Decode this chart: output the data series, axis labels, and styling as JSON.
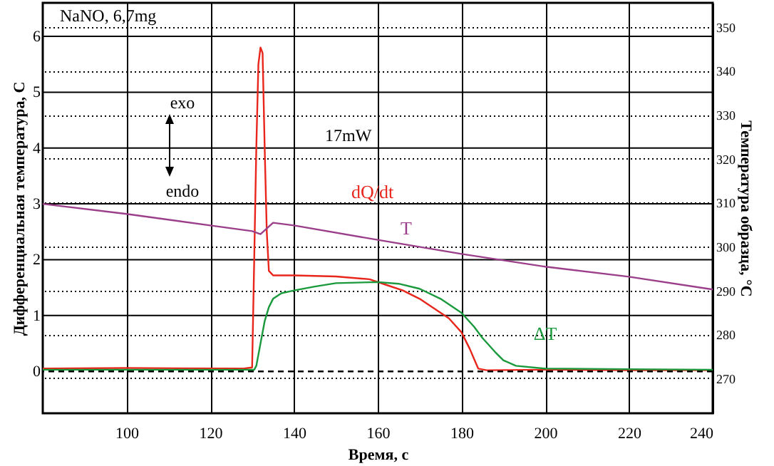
{
  "chart_data": {
    "type": "line",
    "xlabel": "Время, с",
    "ylabel": "Дифференциальная температура, С",
    "y2label": "Температура образца, °С",
    "xlim": [
      80,
      240
    ],
    "xticks": [
      100,
      120,
      140,
      160,
      180,
      200,
      220,
      240
    ],
    "ylim": [
      -0.75,
      6.6
    ],
    "yticks": [
      0,
      1,
      2,
      3,
      4,
      5,
      6
    ],
    "y2lim": [
      262,
      355.5
    ],
    "y2ticks": [
      270,
      280,
      290,
      300,
      310,
      320,
      330,
      340,
      350
    ],
    "grid": true,
    "line_style": "solid",
    "marker": "none",
    "annotations": [
      "NaNO, 6,7mg",
      "exo",
      "endo",
      "17mW"
    ],
    "ref_lines": [
      {
        "axis": "y",
        "value": 0,
        "line_style": "dashed",
        "color": "#000000"
      }
    ],
    "series": [
      {
        "name": "dQ/dt",
        "color": "#e8261c",
        "x": [
          80,
          100,
          128,
          130,
          130.5,
          131,
          131.5,
          132,
          132.5,
          133,
          133.5,
          134,
          135,
          140,
          150,
          158,
          162,
          166,
          170,
          174,
          177,
          180,
          182,
          184,
          186,
          200,
          220,
          240
        ],
        "values": [
          0.05,
          0.06,
          0.05,
          0.07,
          2,
          4,
          5.5,
          5.8,
          5.7,
          4,
          2.5,
          1.8,
          1.72,
          1.72,
          1.7,
          1.65,
          1.55,
          1.45,
          1.3,
          1.1,
          0.95,
          0.7,
          0.4,
          0.05,
          0.02,
          0.03,
          0.02,
          0.02
        ]
      },
      {
        "name": "ΔT",
        "color": "#1a9a3c",
        "x": [
          80,
          100,
          130.5,
          131,
          132,
          133,
          134,
          135,
          137,
          140,
          145,
          150,
          160,
          165,
          170,
          175,
          180,
          183,
          185,
          188,
          190,
          193,
          200,
          220,
          240
        ],
        "values": [
          0.03,
          0.03,
          0.03,
          0.1,
          0.5,
          0.9,
          1.15,
          1.3,
          1.4,
          1.45,
          1.52,
          1.58,
          1.6,
          1.57,
          1.48,
          1.3,
          1.05,
          0.8,
          0.6,
          0.35,
          0.2,
          0.1,
          0.05,
          0.04,
          0.03
        ]
      },
      {
        "name": "T",
        "color": "#9b3f8a",
        "axis": "y2",
        "x": [
          80,
          100,
          120,
          130,
          132,
          135,
          140,
          160,
          180,
          200,
          220,
          240
        ],
        "values": [
          309.7,
          307.4,
          304.8,
          303.5,
          302.8,
          305.4,
          304.8,
          301.5,
          298.3,
          295.4,
          293.1,
          290.2
        ]
      }
    ]
  }
}
